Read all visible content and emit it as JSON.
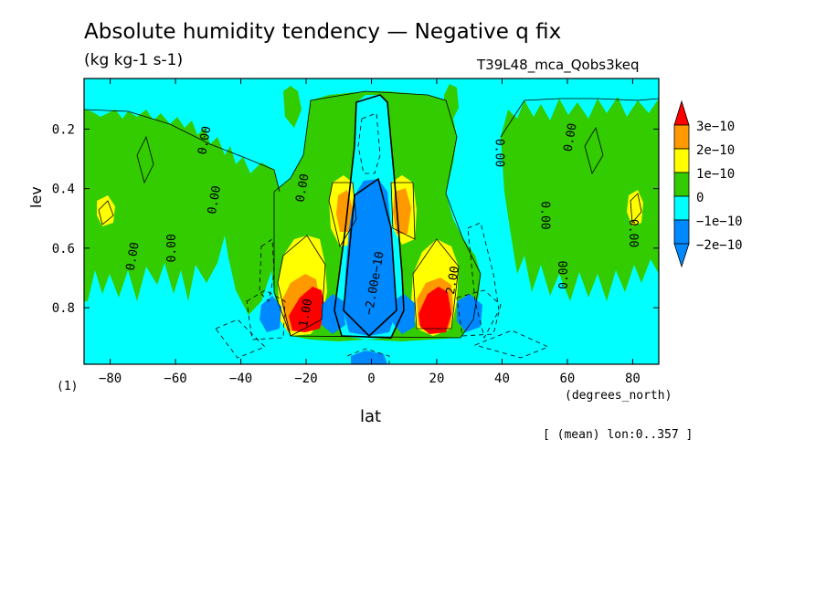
{
  "title": "Absolute humidity tendency — Negative q fix",
  "units": "(kg kg-1 s-1)",
  "run_id": "T39L48_mca_Qobs3keq",
  "panel_label": "(1)",
  "x_units_note": "(degrees_north)",
  "mean_note": "[ (mean) lon:0..357 ]",
  "chart_data": {
    "type": "contour",
    "title": "Absolute humidity tendency — Negative q fix",
    "xlabel": "lat",
    "ylabel": "lev",
    "xlim": [
      -88,
      88
    ],
    "ylim": [
      0.99,
      0.03
    ],
    "x_ticks": [
      -80,
      -60,
      -40,
      -20,
      0,
      20,
      40,
      60,
      80
    ],
    "x_tick_labels": [
      "−80",
      "−60",
      "−40",
      "−20",
      "0",
      "20",
      "40",
      "60",
      "80"
    ],
    "y_ticks": [
      0.2,
      0.4,
      0.6,
      0.8
    ],
    "y_tick_labels": [
      "0.2",
      "0.4",
      "0.6",
      "0.8"
    ],
    "levels": [
      {
        "label": "3e−10",
        "color": "#ff0000"
      },
      {
        "label": "2e−10",
        "color": "#ff9900"
      },
      {
        "label": "1e−10",
        "color": "#ffff00"
      },
      {
        "label": "0",
        "color": "#33cc00"
      },
      {
        "label": "−1e−10",
        "color": "#00ffff"
      },
      {
        "label": "−2e−10",
        "color": "#0088ff"
      }
    ],
    "colors": {
      "background": "#00ffff",
      "green": "#33cc00",
      "yellow": "#ffff00",
      "orange": "#ff9900",
      "red": "#ff0000",
      "blue": "#0088ff"
    },
    "contour_labels": [
      {
        "text": "0.00",
        "lat": -72,
        "lev": 0.63,
        "rotate": -80
      },
      {
        "text": "0.00",
        "lat": -60,
        "lev": 0.6,
        "rotate": -90
      },
      {
        "text": "0.00",
        "lat": -50,
        "lev": 0.24,
        "rotate": -80
      },
      {
        "text": "0.00",
        "lat": -47,
        "lev": 0.44,
        "rotate": -80
      },
      {
        "text": "0.00",
        "lat": -20,
        "lev": 0.4,
        "rotate": -80
      },
      {
        "text": "0.00",
        "lat": 38,
        "lev": 0.28,
        "rotate": 90
      },
      {
        "text": "0.00",
        "lat": 52,
        "lev": 0.49,
        "rotate": 90
      },
      {
        "text": "0.00",
        "lat": 60,
        "lev": 0.69,
        "rotate": -90
      },
      {
        "text": "0.00",
        "lat": 62,
        "lev": 0.23,
        "rotate": -80
      },
      {
        "text": "0.00",
        "lat": 79,
        "lev": 0.55,
        "rotate": 90
      },
      {
        "text": "−2.00e−10",
        "lat": 2,
        "lev": 0.72,
        "rotate": -80
      },
      {
        "text": "1.00",
        "lat": -19,
        "lev": 0.82,
        "rotate": -80
      },
      {
        "text": "2.00",
        "lat": 26,
        "lev": 0.71,
        "rotate": -80
      }
    ]
  }
}
